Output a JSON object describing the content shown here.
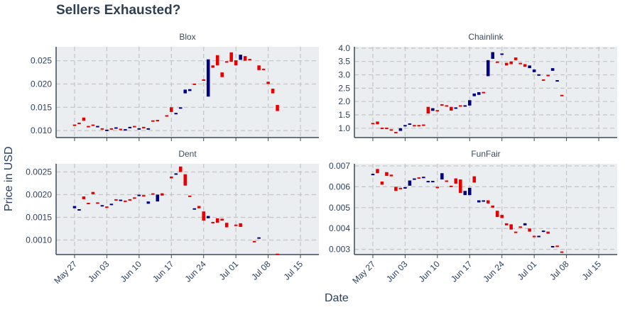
{
  "title": "Sellers Exhausted?",
  "chart_data": {
    "type": "candlestick",
    "xlabel": "Date",
    "ylabel": "Price in USD",
    "colors": {
      "increasing": "#00007f",
      "decreasing": "#e80000",
      "panel_bg": "#ebeef0",
      "grid": "#c4c4c4",
      "axis": "#3a4a5a"
    },
    "x_ticks": [
      "May 27",
      "Jun 03",
      "Jun 10",
      "Jun 17",
      "Jun 24",
      "Jul 01",
      "Jul 08",
      "Jul 15"
    ],
    "x_tick_days": [
      0,
      7,
      14,
      21,
      28,
      35,
      42,
      49
    ],
    "x_range_days": [
      -4,
      53
    ],
    "grid": true,
    "panels": [
      {
        "name": "Blox",
        "ylim": [
          0.0085,
          0.028
        ],
        "yticks": [
          0.01,
          0.015,
          0.02,
          0.025
        ],
        "ytick_labels": [
          "0.010",
          "0.015",
          "0.020",
          "0.025"
        ],
        "candles": [
          {
            "d": 0,
            "o": 0.0113,
            "c": 0.0112
          },
          {
            "d": 1,
            "o": 0.0117,
            "c": 0.0115
          },
          {
            "d": 2,
            "o": 0.0128,
            "c": 0.0121
          },
          {
            "d": 3,
            "o": 0.011,
            "c": 0.0109
          },
          {
            "d": 4,
            "o": 0.0113,
            "c": 0.0111
          },
          {
            "d": 5,
            "o": 0.0108,
            "c": 0.011
          },
          {
            "d": 6,
            "o": 0.0105,
            "c": 0.0103
          },
          {
            "d": 7,
            "o": 0.0101,
            "c": 0.0102
          },
          {
            "d": 8,
            "o": 0.0105,
            "c": 0.0104
          },
          {
            "d": 9,
            "o": 0.0106,
            "c": 0.0107
          },
          {
            "d": 10,
            "o": 0.0104,
            "c": 0.0103
          },
          {
            "d": 11,
            "o": 0.01,
            "c": 0.0103
          },
          {
            "d": 12,
            "o": 0.0107,
            "c": 0.0108
          },
          {
            "d": 13,
            "o": 0.011,
            "c": 0.0108
          },
          {
            "d": 14,
            "o": 0.0103,
            "c": 0.0105
          },
          {
            "d": 15,
            "o": 0.0108,
            "c": 0.0106
          },
          {
            "d": 16,
            "o": 0.0103,
            "c": 0.0105
          },
          {
            "d": 17,
            "o": 0.0122,
            "c": 0.0121
          },
          {
            "d": 18,
            "o": 0.0123,
            "c": 0.0122
          },
          {
            "d": 20,
            "o": 0.0133,
            "c": 0.0132
          },
          {
            "d": 21,
            "o": 0.015,
            "c": 0.014
          },
          {
            "d": 22,
            "o": 0.0136,
            "c": 0.0138
          },
          {
            "d": 23,
            "o": 0.0147,
            "c": 0.015
          },
          {
            "d": 24,
            "o": 0.018,
            "c": 0.0188
          },
          {
            "d": 25,
            "o": 0.0185,
            "c": 0.0189
          },
          {
            "d": 26,
            "o": 0.0201,
            "c": 0.0199
          },
          {
            "d": 28,
            "o": 0.021,
            "c": 0.0209
          },
          {
            "d": 29,
            "o": 0.0173,
            "c": 0.0253
          },
          {
            "d": 30,
            "o": 0.024,
            "c": 0.0235
          },
          {
            "d": 31,
            "o": 0.0262,
            "c": 0.024
          },
          {
            "d": 32,
            "o": 0.0225,
            "c": 0.0215
          },
          {
            "d": 33,
            "o": 0.0249,
            "c": 0.0248
          },
          {
            "d": 34,
            "o": 0.0268,
            "c": 0.0248
          },
          {
            "d": 35,
            "o": 0.0251,
            "c": 0.024
          },
          {
            "d": 36,
            "o": 0.0252,
            "c": 0.0263
          },
          {
            "d": 37,
            "o": 0.026,
            "c": 0.025
          },
          {
            "d": 38,
            "o": 0.0254,
            "c": 0.0252
          },
          {
            "d": 40,
            "o": 0.024,
            "c": 0.023
          },
          {
            "d": 41,
            "o": 0.0233,
            "c": 0.0231
          },
          {
            "d": 42,
            "o": 0.0205,
            "c": 0.02
          },
          {
            "d": 43,
            "o": 0.019,
            "c": 0.018
          },
          {
            "d": 44,
            "o": 0.0155,
            "c": 0.0142
          }
        ]
      },
      {
        "name": "Chainlink",
        "ylim": [
          0.65,
          4.05
        ],
        "yticks": [
          1.0,
          1.5,
          2.0,
          2.5,
          3.0,
          3.5,
          4.0
        ],
        "ytick_labels": [
          "1.0",
          "1.5",
          "2.0",
          "2.5",
          "3.0",
          "3.5",
          "4.0"
        ],
        "candles": [
          {
            "d": 0,
            "o": 1.2,
            "c": 1.17
          },
          {
            "d": 1,
            "o": 1.25,
            "c": 1.15
          },
          {
            "d": 2,
            "o": 1.02,
            "c": 0.98
          },
          {
            "d": 3,
            "o": 1.02,
            "c": 0.98
          },
          {
            "d": 4,
            "o": 0.96,
            "c": 0.94
          },
          {
            "d": 5,
            "o": 0.86,
            "c": 0.84
          },
          {
            "d": 6,
            "o": 0.9,
            "c": 1.0
          },
          {
            "d": 7,
            "o": 1.1,
            "c": 1.12
          },
          {
            "d": 8,
            "o": 1.15,
            "c": 1.18
          },
          {
            "d": 9,
            "o": 1.12,
            "c": 1.1
          },
          {
            "d": 10,
            "o": 1.12,
            "c": 1.1
          },
          {
            "d": 11,
            "o": 1.14,
            "c": 1.12
          },
          {
            "d": 12,
            "o": 1.8,
            "c": 1.55
          },
          {
            "d": 13,
            "o": 1.65,
            "c": 1.75
          },
          {
            "d": 14,
            "o": 1.68,
            "c": 1.66
          },
          {
            "d": 15,
            "o": 1.9,
            "c": 1.88
          },
          {
            "d": 16,
            "o": 1.86,
            "c": 1.83
          },
          {
            "d": 17,
            "o": 1.8,
            "c": 1.66
          },
          {
            "d": 18,
            "o": 1.75,
            "c": 1.78
          },
          {
            "d": 19,
            "o": 1.86,
            "c": 1.84
          },
          {
            "d": 20,
            "o": 1.82,
            "c": 1.86
          },
          {
            "d": 21,
            "o": 1.85,
            "c": 2.05
          },
          {
            "d": 22,
            "o": 2.2,
            "c": 2.3
          },
          {
            "d": 23,
            "o": 2.25,
            "c": 2.35
          },
          {
            "d": 24,
            "o": 2.36,
            "c": 2.34
          },
          {
            "d": 25,
            "o": 2.95,
            "c": 3.55
          },
          {
            "d": 26,
            "o": 3.6,
            "c": 3.85
          },
          {
            "d": 27,
            "o": 3.5,
            "c": 3.45
          },
          {
            "d": 28,
            "o": 3.75,
            "c": 3.8
          },
          {
            "d": 29,
            "o": 3.45,
            "c": 3.35
          },
          {
            "d": 30,
            "o": 3.5,
            "c": 3.4
          },
          {
            "d": 31,
            "o": 3.65,
            "c": 3.55
          },
          {
            "d": 32,
            "o": 3.45,
            "c": 3.4
          },
          {
            "d": 33,
            "o": 3.4,
            "c": 3.3
          },
          {
            "d": 34,
            "o": 3.25,
            "c": 3.35
          },
          {
            "d": 35,
            "o": 3.1,
            "c": 3.2
          },
          {
            "d": 36,
            "o": 2.98,
            "c": 3.02
          },
          {
            "d": 37,
            "o": 2.83,
            "c": 2.81
          },
          {
            "d": 38,
            "o": 3.0,
            "c": 2.95
          },
          {
            "d": 39,
            "o": 3.15,
            "c": 3.25
          },
          {
            "d": 40,
            "o": 2.75,
            "c": 2.8
          },
          {
            "d": 41,
            "o": 2.25,
            "c": 2.23
          }
        ]
      },
      {
        "name": "Dent",
        "ylim": [
          0.00068,
          0.00268
        ],
        "yticks": [
          0.001,
          0.0015,
          0.002,
          0.0025
        ],
        "ytick_labels": [
          "0.0010",
          "0.0015",
          "0.0020",
          "0.0025"
        ],
        "candles": [
          {
            "d": 0,
            "o": 0.0017,
            "c": 0.00175
          },
          {
            "d": 1,
            "o": 0.00165,
            "c": 0.00168
          },
          {
            "d": 2,
            "o": 0.00196,
            "c": 0.0019
          },
          {
            "d": 3,
            "o": 0.00182,
            "c": 0.00181
          },
          {
            "d": 4,
            "o": 0.00206,
            "c": 0.00201
          },
          {
            "d": 5,
            "o": 0.00183,
            "c": 0.00182
          },
          {
            "d": 6,
            "o": 0.00175,
            "c": 0.00177
          },
          {
            "d": 7,
            "o": 0.00174,
            "c": 0.00173
          },
          {
            "d": 8,
            "o": 0.00178,
            "c": 0.0018
          },
          {
            "d": 9,
            "o": 0.0019,
            "c": 0.00188
          },
          {
            "d": 10,
            "o": 0.00186,
            "c": 0.00189
          },
          {
            "d": 11,
            "o": 0.00187,
            "c": 0.00186
          },
          {
            "d": 12,
            "o": 0.0019,
            "c": 0.00189
          },
          {
            "d": 13,
            "o": 0.00194,
            "c": 0.00193
          },
          {
            "d": 14,
            "o": 0.00198,
            "c": 0.002
          },
          {
            "d": 15,
            "o": 0.00199,
            "c": 0.00196
          },
          {
            "d": 16,
            "o": 0.0018,
            "c": 0.00185
          },
          {
            "d": 17,
            "o": 0.00203,
            "c": 0.00201
          },
          {
            "d": 18,
            "o": 0.00185,
            "c": 0.002
          },
          {
            "d": 19,
            "o": 0.00203,
            "c": 0.00198
          },
          {
            "d": 21,
            "o": 0.0024,
            "c": 0.00236
          },
          {
            "d": 22,
            "o": 0.00245,
            "c": 0.00247
          },
          {
            "d": 23,
            "o": 0.00262,
            "c": 0.0025
          },
          {
            "d": 24,
            "o": 0.00245,
            "c": 0.0022
          },
          {
            "d": 25,
            "o": 0.00198,
            "c": 0.00197
          },
          {
            "d": 26,
            "o": 0.00168,
            "c": 0.0017
          },
          {
            "d": 27,
            "o": 0.00175,
            "c": 0.0017
          },
          {
            "d": 28,
            "o": 0.00163,
            "c": 0.00143
          },
          {
            "d": 29,
            "o": 0.00148,
            "c": 0.00153
          },
          {
            "d": 30,
            "o": 0.0014,
            "c": 0.00139
          },
          {
            "d": 31,
            "o": 0.00148,
            "c": 0.00138
          },
          {
            "d": 32,
            "o": 0.00147,
            "c": 0.00143
          },
          {
            "d": 33,
            "o": 0.00138,
            "c": 0.00128
          },
          {
            "d": 35,
            "o": 0.00134,
            "c": 0.00133
          },
          {
            "d": 36,
            "o": 0.00137,
            "c": 0.00129
          },
          {
            "d": 39,
            "o": 0.00098,
            "c": 0.00097
          },
          {
            "d": 40,
            "o": 0.00104,
            "c": 0.00106
          },
          {
            "d": 44,
            "o": 0.0007,
            "c": 0.00069
          }
        ]
      },
      {
        "name": "FunFair",
        "ylim": [
          0.00275,
          0.0071
        ],
        "yticks": [
          0.003,
          0.004,
          0.005,
          0.006,
          0.007
        ],
        "ytick_labels": [
          "0.003",
          "0.004",
          "0.005",
          "0.006",
          "0.007"
        ],
        "candles": [
          {
            "d": 0,
            "o": 0.00658,
            "c": 0.00662
          },
          {
            "d": 1,
            "o": 0.00685,
            "c": 0.00665
          },
          {
            "d": 2,
            "o": 0.00625,
            "c": 0.0061
          },
          {
            "d": 3,
            "o": 0.0067,
            "c": 0.00652
          },
          {
            "d": 4,
            "o": 0.00658,
            "c": 0.0065
          },
          {
            "d": 5,
            "o": 0.006,
            "c": 0.0058
          },
          {
            "d": 6,
            "o": 0.00595,
            "c": 0.0059
          },
          {
            "d": 7,
            "o": 0.00595,
            "c": 0.00598
          },
          {
            "d": 8,
            "o": 0.00605,
            "c": 0.0063
          },
          {
            "d": 9,
            "o": 0.00635,
            "c": 0.0064
          },
          {
            "d": 10,
            "o": 0.00645,
            "c": 0.00642
          },
          {
            "d": 11,
            "o": 0.00645,
            "c": 0.00648
          },
          {
            "d": 12,
            "o": 0.00625,
            "c": 0.00628
          },
          {
            "d": 13,
            "o": 0.00625,
            "c": 0.00628
          },
          {
            "d": 14,
            "o": 0.006,
            "c": 0.00595
          },
          {
            "d": 15,
            "o": 0.00635,
            "c": 0.00665
          },
          {
            "d": 16,
            "o": 0.0063,
            "c": 0.00625
          },
          {
            "d": 17,
            "o": 0.00605,
            "c": 0.006
          },
          {
            "d": 18,
            "o": 0.0064,
            "c": 0.00615
          },
          {
            "d": 19,
            "o": 0.00635,
            "c": 0.0057
          },
          {
            "d": 20,
            "o": 0.0056,
            "c": 0.0058
          },
          {
            "d": 21,
            "o": 0.0056,
            "c": 0.00595
          },
          {
            "d": 22,
            "o": 0.0065,
            "c": 0.0062
          },
          {
            "d": 23,
            "o": 0.00525,
            "c": 0.00535
          },
          {
            "d": 24,
            "o": 0.0053,
            "c": 0.00535
          },
          {
            "d": 25,
            "o": 0.00535,
            "c": 0.0052
          },
          {
            "d": 26,
            "o": 0.0051,
            "c": 0.005
          },
          {
            "d": 27,
            "o": 0.00485,
            "c": 0.00455
          },
          {
            "d": 28,
            "o": 0.00465,
            "c": 0.0045
          },
          {
            "d": 29,
            "o": 0.00425,
            "c": 0.00415
          },
          {
            "d": 30,
            "o": 0.0042,
            "c": 0.00395
          },
          {
            "d": 31,
            "o": 0.00385,
            "c": 0.0038
          },
          {
            "d": 32,
            "o": 0.0041,
            "c": 0.00405
          },
          {
            "d": 33,
            "o": 0.00415,
            "c": 0.00425
          },
          {
            "d": 34,
            "o": 0.004,
            "c": 0.00385
          },
          {
            "d": 35,
            "o": 0.00365,
            "c": 0.0036
          },
          {
            "d": 36,
            "o": 0.0036,
            "c": 0.00365
          },
          {
            "d": 37,
            "o": 0.00385,
            "c": 0.0039
          },
          {
            "d": 38,
            "o": 0.00385,
            "c": 0.00375
          },
          {
            "d": 39,
            "o": 0.00315,
            "c": 0.00316
          },
          {
            "d": 40,
            "o": 0.00318,
            "c": 0.00316
          },
          {
            "d": 41,
            "o": 0.0029,
            "c": 0.00285
          }
        ]
      }
    ]
  }
}
